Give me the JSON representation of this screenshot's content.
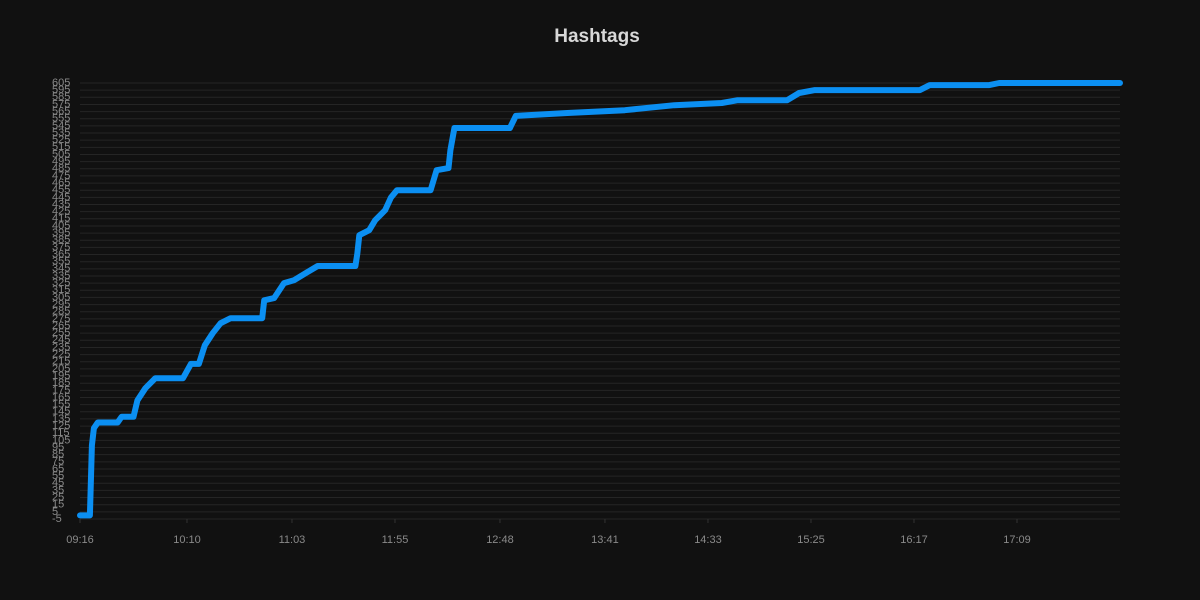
{
  "chart_data": {
    "type": "line",
    "title": "Hashtags",
    "x": [
      "09:16",
      "09:21",
      "09:22",
      "09:23",
      "09:25",
      "09:35",
      "09:37",
      "09:43",
      "09:45",
      "09:49",
      "09:54",
      "10:08",
      "10:12",
      "10:16",
      "10:19",
      "10:23",
      "10:27",
      "10:32",
      "10:48",
      "10:49",
      "10:54",
      "10:59",
      "11:04",
      "11:10",
      "11:16",
      "11:35",
      "11:36",
      "11:37",
      "11:42",
      "11:45",
      "11:50",
      "11:53",
      "11:56",
      "12:13",
      "12:16",
      "12:22",
      "12:23",
      "12:25",
      "12:53",
      "12:56",
      "13:22",
      "13:51",
      "14:16",
      "14:40",
      "14:48",
      "15:13",
      "15:19",
      "15:27",
      "16:20",
      "16:25",
      "16:55",
      "17:00",
      "18:01"
    ],
    "series": [
      {
        "name": "Hashtags",
        "color": "#0b8ff2",
        "values": [
          0,
          0,
          98,
          122,
          130,
          130,
          138,
          138,
          161,
          178,
          192,
          192,
          212,
          212,
          238,
          255,
          269,
          276,
          276,
          301,
          304,
          325,
          329,
          339,
          349,
          349,
          366,
          392,
          399,
          413,
          427,
          445,
          455,
          455,
          483,
          486,
          511,
          542,
          542,
          559,
          563,
          567,
          574,
          577,
          581,
          581,
          591,
          595,
          595,
          602,
          602,
          605,
          605
        ]
      }
    ],
    "xlim": [
      "09:16",
      "18:01"
    ],
    "xticks": [
      "09:16",
      "10:10",
      "11:03",
      "11:55",
      "12:48",
      "13:41",
      "14:33",
      "15:25",
      "16:17",
      "17:09"
    ],
    "ylim": [
      -5,
      605
    ],
    "yticks": [
      -5,
      5,
      15,
      25,
      35,
      45,
      55,
      65,
      75,
      85,
      95,
      105,
      115,
      125,
      135,
      145,
      155,
      165,
      175,
      185,
      195,
      205,
      215,
      225,
      235,
      245,
      255,
      265,
      275,
      285,
      295,
      305,
      315,
      325,
      335,
      345,
      355,
      365,
      375,
      385,
      395,
      405,
      415,
      425,
      435,
      445,
      455,
      465,
      475,
      485,
      495,
      505,
      515,
      525,
      535,
      545,
      555,
      565,
      575,
      585,
      595,
      605
    ],
    "grid": true
  }
}
